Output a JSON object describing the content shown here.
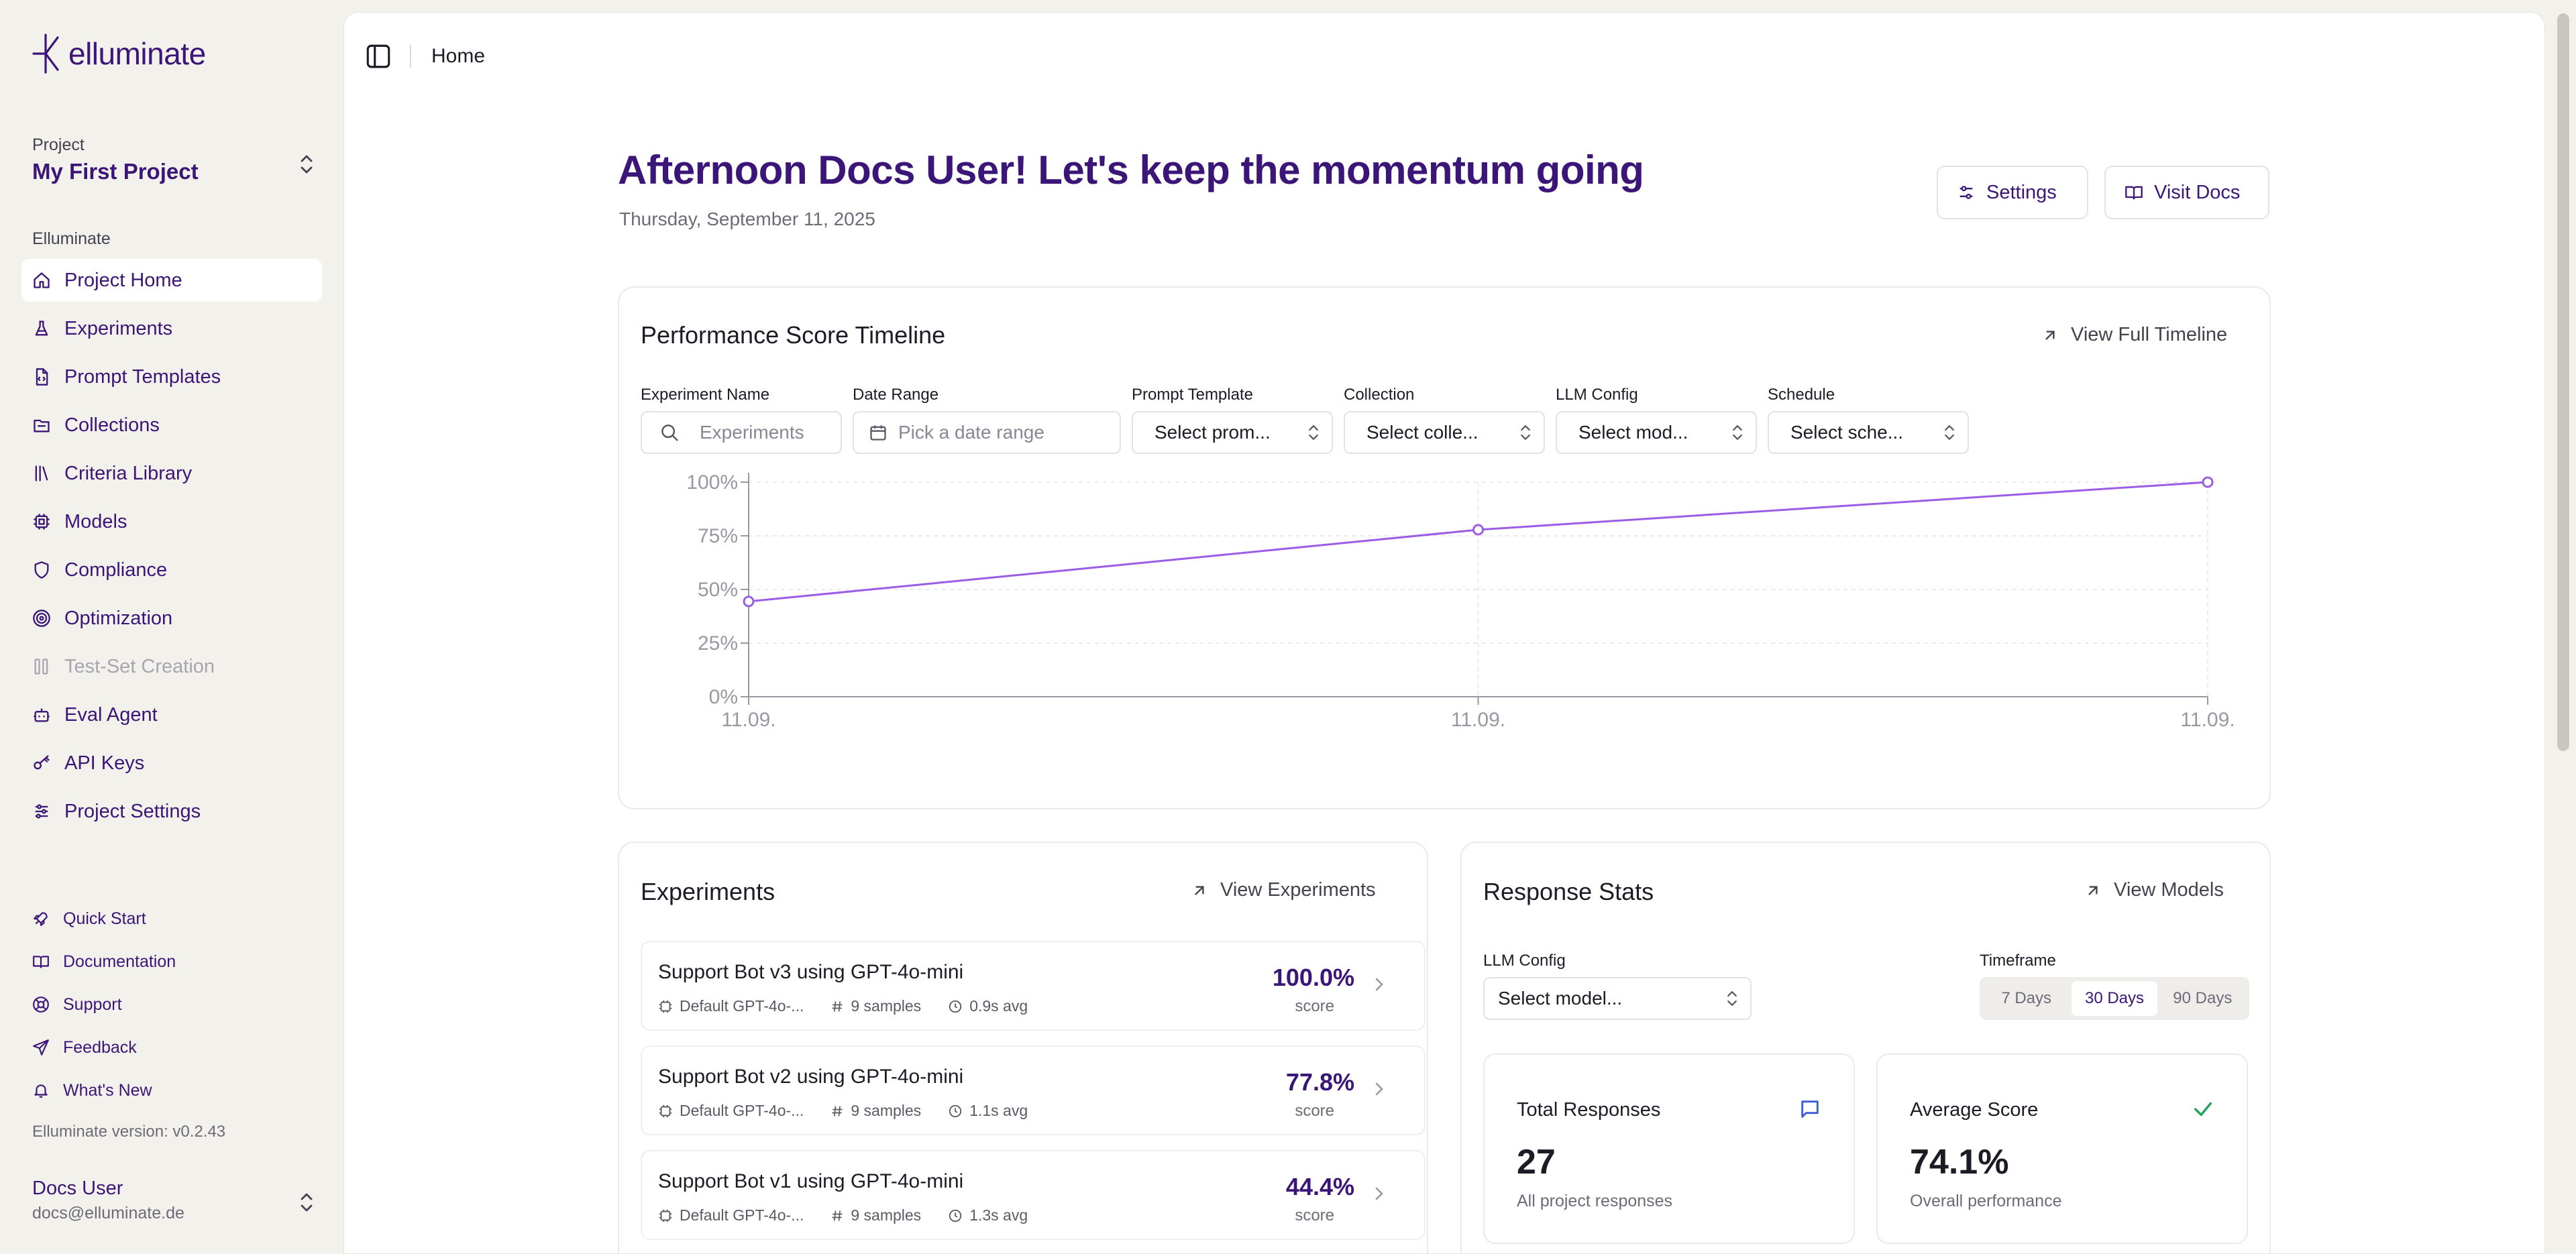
{
  "sidebar": {
    "logo_text": "elluminate",
    "project_caption": "Project",
    "project_name": "My First Project",
    "section_label": "Elluminate",
    "items": [
      {
        "label": "Project Home",
        "icon": "home-icon",
        "active": true
      },
      {
        "label": "Experiments",
        "icon": "flask-icon"
      },
      {
        "label": "Prompt Templates",
        "icon": "file-code-icon"
      },
      {
        "label": "Collections",
        "icon": "folder-icon"
      },
      {
        "label": "Criteria Library",
        "icon": "library-icon"
      },
      {
        "label": "Models",
        "icon": "cpu-icon"
      },
      {
        "label": "Compliance",
        "icon": "shield-icon"
      },
      {
        "label": "Optimization",
        "icon": "target-icon"
      },
      {
        "label": "Test-Set Creation",
        "icon": "columns-icon",
        "disabled": true
      },
      {
        "label": "Eval Agent",
        "icon": "bot-icon"
      },
      {
        "label": "API Keys",
        "icon": "key-icon"
      },
      {
        "label": "Project Settings",
        "icon": "sliders-icon"
      }
    ],
    "footer_items": [
      {
        "label": "Quick Start",
        "icon": "rocket-icon"
      },
      {
        "label": "Documentation",
        "icon": "book-icon"
      },
      {
        "label": "Support",
        "icon": "lifebuoy-icon"
      },
      {
        "label": "Feedback",
        "icon": "send-icon"
      },
      {
        "label": "What's New",
        "icon": "bell-icon"
      }
    ],
    "version": "Elluminate version: v0.2.43",
    "user_name": "Docs User",
    "user_email": "docs@elluminate.de"
  },
  "topbar": {
    "breadcrumb": "Home"
  },
  "header": {
    "greeting": "Afternoon Docs User! Let's keep the momentum going",
    "date": "Thursday, September 11, 2025",
    "settings_label": "Settings",
    "docs_label": "Visit Docs"
  },
  "timeline": {
    "title": "Performance Score Timeline",
    "link_label": "View Full Timeline",
    "filters": {
      "experiment_label": "Experiment Name",
      "experiment_placeholder": "Experiments",
      "date_label": "Date Range",
      "date_placeholder": "Pick a date range",
      "prompt_label": "Prompt Template",
      "prompt_value": "Select prom...",
      "collection_label": "Collection",
      "collection_value": "Select colle...",
      "llm_label": "LLM Config",
      "llm_value": "Select mod...",
      "schedule_label": "Schedule",
      "schedule_value": "Select sche..."
    }
  },
  "chart_data": {
    "type": "line",
    "x": [
      "11.09.",
      "11.09.",
      "11.09."
    ],
    "series": [
      {
        "values": [
          44.4,
          77.8,
          100.0
        ]
      }
    ],
    "yticks": [
      "0%",
      "25%",
      "50%",
      "75%",
      "100%"
    ],
    "ylim": [
      0,
      100
    ],
    "grid": true,
    "color": "#9b5de5"
  },
  "experiments": {
    "title": "Experiments",
    "link_label": "View Experiments",
    "score_label": "score",
    "rows": [
      {
        "name": "Support Bot v3 using GPT-4o-mini",
        "config": "Default GPT-4o-...",
        "samples": "9 samples",
        "avg": "0.9s avg",
        "score": "100.0%"
      },
      {
        "name": "Support Bot v2 using GPT-4o-mini",
        "config": "Default GPT-4o-...",
        "samples": "9 samples",
        "avg": "1.1s avg",
        "score": "77.8%"
      },
      {
        "name": "Support Bot v1 using GPT-4o-mini",
        "config": "Default GPT-4o-...",
        "samples": "9 samples",
        "avg": "1.3s avg",
        "score": "44.4%"
      }
    ]
  },
  "response_stats": {
    "title": "Response Stats",
    "link_label": "View Models",
    "llm_label": "LLM Config",
    "llm_value": "Select model...",
    "timeframe_label": "Timeframe",
    "timeframes": [
      "7 Days",
      "30 Days",
      "90 Days"
    ],
    "active_timeframe": "30 Days",
    "total_label": "Total Responses",
    "total_value": "27",
    "total_sub": "All project responses",
    "avg_label": "Average Score",
    "avg_value": "74.1%",
    "avg_sub": "Overall performance"
  },
  "colors": {
    "accent": "#3b1577",
    "line": "#9b5de5",
    "success": "#22a35a"
  }
}
